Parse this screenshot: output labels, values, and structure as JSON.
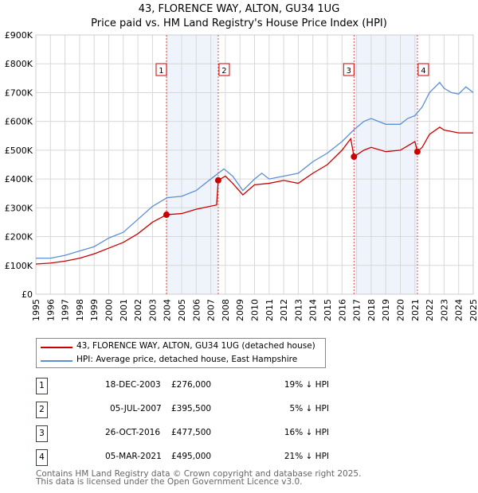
{
  "chart_data": {
    "type": "line",
    "title": "43, FLORENCE WAY, ALTON, GU34 1UG",
    "subtitle": "Price paid vs. HM Land Registry's House Price Index (HPI)",
    "xlim": [
      1995,
      2025
    ],
    "ylim": [
      0,
      900000
    ],
    "grid": true,
    "y_ticks": [
      "£0",
      "£100K",
      "£200K",
      "£300K",
      "£400K",
      "£500K",
      "£600K",
      "£700K",
      "£800K",
      "£900K"
    ],
    "x_ticks": [
      "1995",
      "1996",
      "1997",
      "1998",
      "1999",
      "2000",
      "2001",
      "2002",
      "2003",
      "2004",
      "2005",
      "2006",
      "2007",
      "2008",
      "2009",
      "2010",
      "2011",
      "2012",
      "2013",
      "2014",
      "2015",
      "2016",
      "2017",
      "2018",
      "2019",
      "2020",
      "2021",
      "2022",
      "2023",
      "2024",
      "2025"
    ],
    "series": [
      {
        "name": "43, FLORENCE WAY, ALTON, GU34 1UG (detached house)",
        "color": "#cc0000",
        "x": [
          1995,
          1996,
          1997,
          1998,
          1999,
          2000,
          2001,
          2002,
          2003,
          2003.96,
          2005,
          2006,
          2007.4,
          2007.51,
          2008,
          2008.5,
          2009.2,
          2010,
          2011,
          2012,
          2013,
          2014,
          2015,
          2016,
          2016.6,
          2016.82,
          2017.5,
          2018,
          2019,
          2020,
          2021.0,
          2021.17,
          2021.5,
          2022,
          2022.7,
          2023,
          2024,
          2025
        ],
        "y": [
          105000,
          108000,
          115000,
          125000,
          140000,
          160000,
          180000,
          210000,
          250000,
          276000,
          280000,
          295000,
          310000,
          395500,
          410000,
          385000,
          345000,
          380000,
          385000,
          395000,
          385000,
          420000,
          450000,
          500000,
          540000,
          477500,
          500000,
          510000,
          495000,
          500000,
          530000,
          495000,
          510000,
          555000,
          580000,
          570000,
          560000,
          560000
        ]
      },
      {
        "name": "HPI: Average price, detached house, East Hampshire",
        "color": "#5b8fd6",
        "x": [
          1995,
          1996,
          1997,
          1998,
          1999,
          2000,
          2001,
          2002,
          2003,
          2004,
          2005,
          2006,
          2007,
          2007.9,
          2008.5,
          2009.2,
          2010,
          2010.5,
          2011,
          2012,
          2013,
          2014,
          2015,
          2016,
          2016.8,
          2017.5,
          2018,
          2019,
          2020,
          2020.5,
          2021,
          2021.5,
          2022,
          2022.7,
          2023,
          2023.5,
          2024,
          2024.5,
          2025
        ],
        "y": [
          125000,
          125000,
          135000,
          150000,
          165000,
          195000,
          215000,
          260000,
          305000,
          335000,
          340000,
          360000,
          400000,
          435000,
          410000,
          360000,
          400000,
          420000,
          400000,
          410000,
          420000,
          460000,
          490000,
          530000,
          570000,
          600000,
          610000,
          590000,
          590000,
          610000,
          620000,
          650000,
          700000,
          735000,
          715000,
          700000,
          695000,
          720000,
          700000
        ]
      }
    ],
    "sales": [
      {
        "id": "1",
        "date": "18-DEC-2003",
        "x": 2003.96,
        "price": "£276,000",
        "value": 276000,
        "hpi": "19% ↓ HPI"
      },
      {
        "id": "2",
        "date": "05-JUL-2007",
        "x": 2007.51,
        "price": "£395,500",
        "value": 395500,
        "hpi": "5% ↓ HPI"
      },
      {
        "id": "3",
        "date": "26-OCT-2016",
        "x": 2016.82,
        "price": "£477,500",
        "value": 477500,
        "hpi": "16% ↓ HPI"
      },
      {
        "id": "4",
        "date": "05-MAR-2021",
        "x": 2021.17,
        "price": "£495,000",
        "value": 495000,
        "hpi": "21% ↓ HPI"
      }
    ],
    "shaded": [
      [
        2003.96,
        2007.51
      ],
      [
        2016.82,
        2021.17
      ]
    ]
  },
  "footer": [
    "Contains HM Land Registry data © Crown copyright and database right 2025.",
    "This data is licensed under the Open Government Licence v3.0."
  ]
}
